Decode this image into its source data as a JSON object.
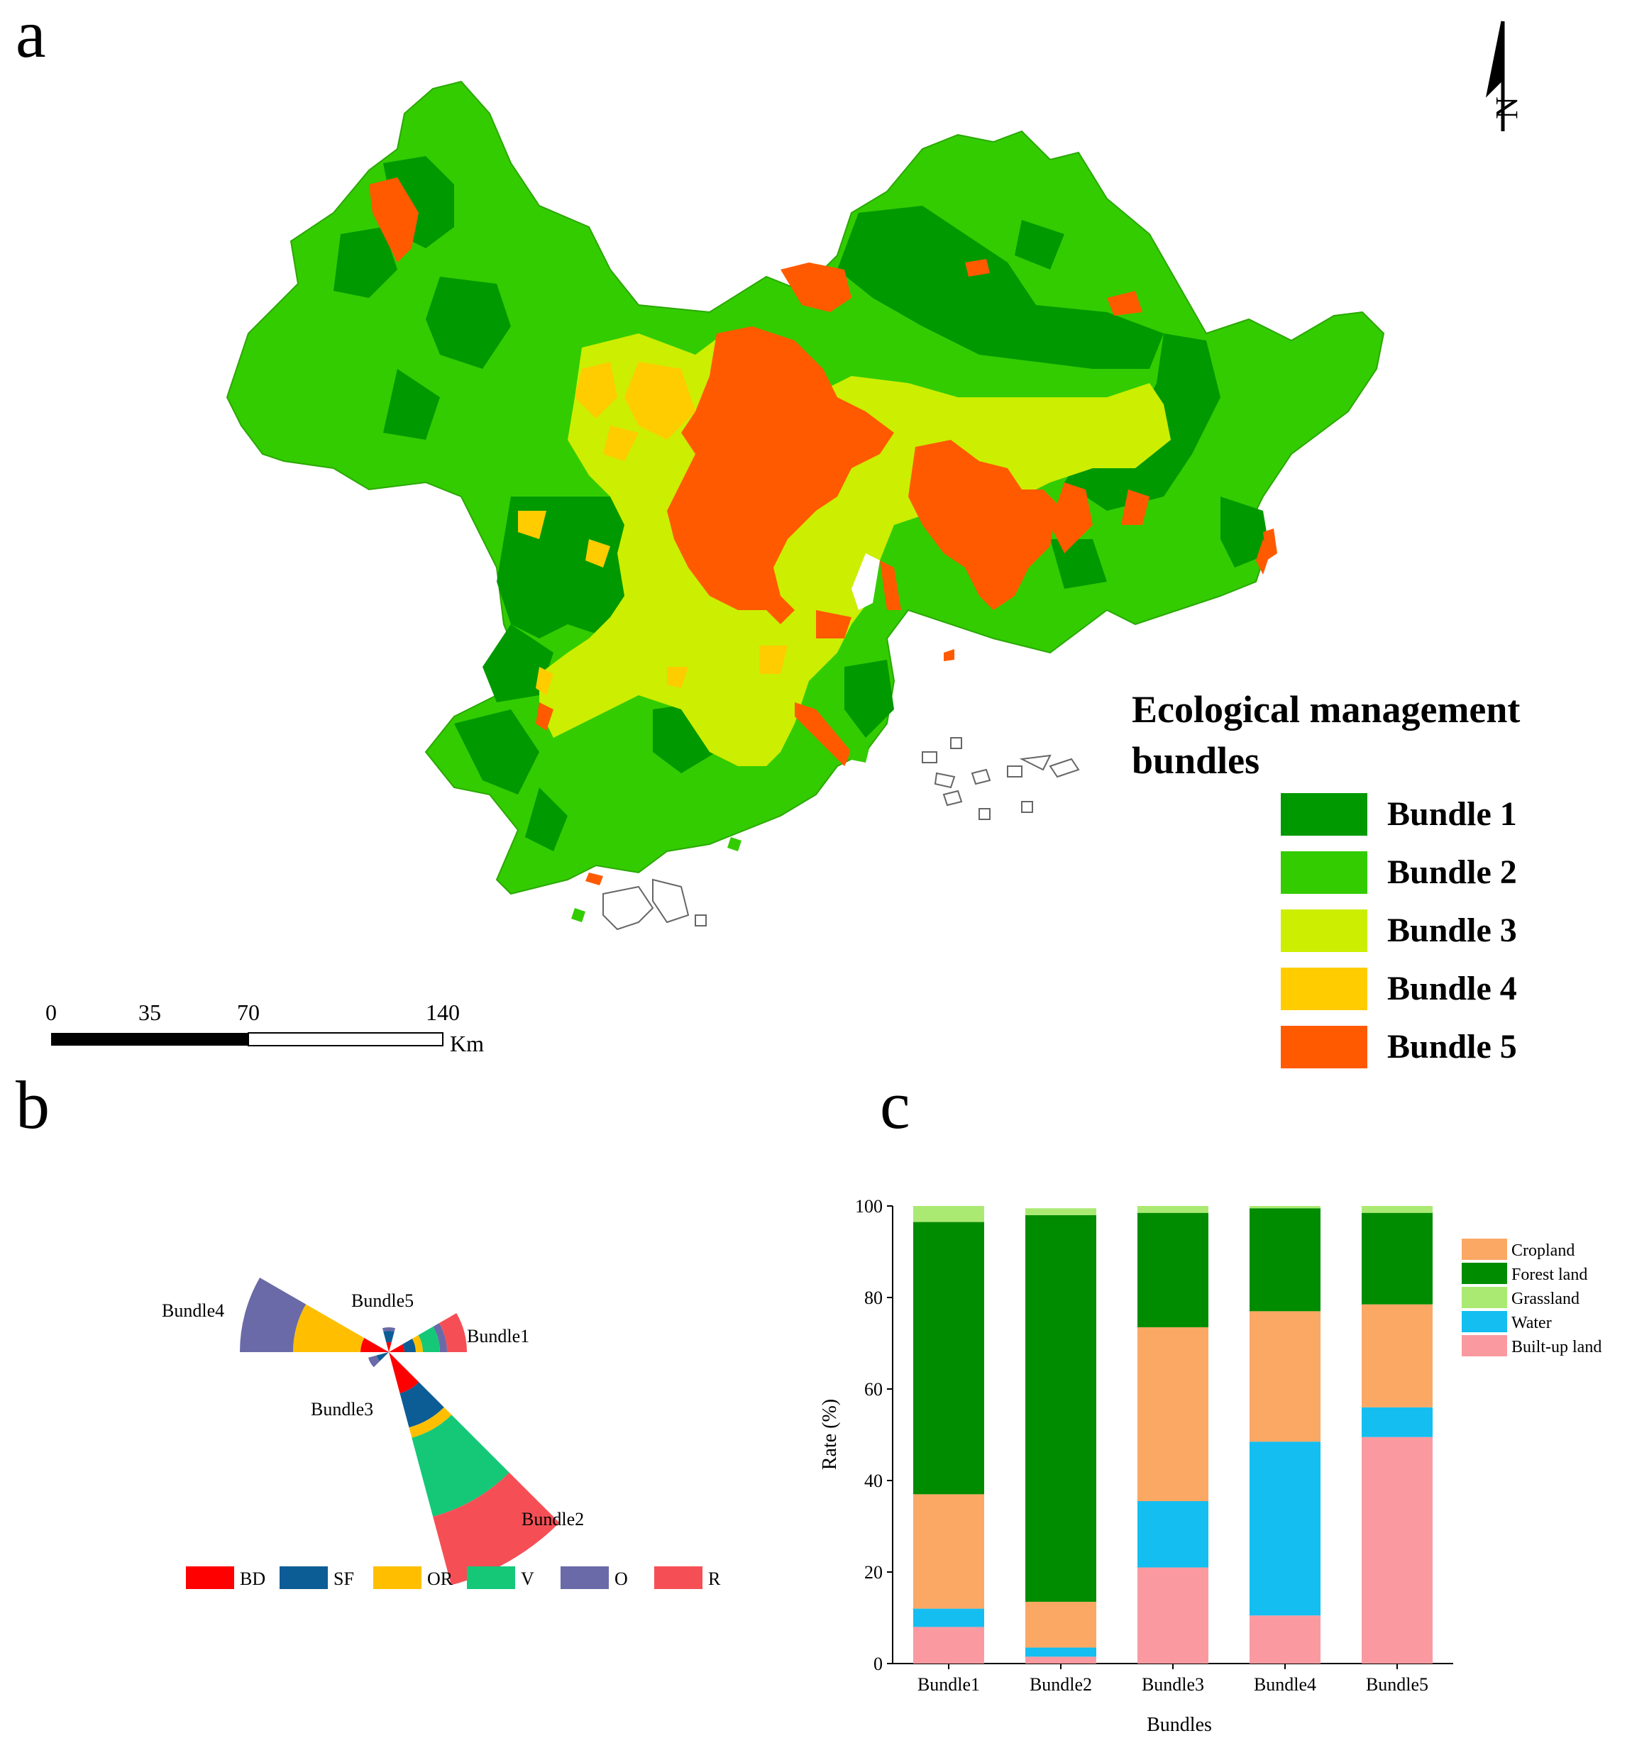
{
  "panels": {
    "a": {
      "label": "a"
    },
    "b": {
      "label": "b"
    },
    "c": {
      "label": "c"
    }
  },
  "map": {
    "legend_title_line1": "Ecological management",
    "legend_title_line2": "bundles",
    "legend": [
      {
        "label": "Bundle 1",
        "color": "#009900"
      },
      {
        "label": "Bundle 2",
        "color": "#33cc00"
      },
      {
        "label": "Bundle 3",
        "color": "#ccee00"
      },
      {
        "label": "Bundle 4",
        "color": "#ffcc00"
      },
      {
        "label": "Bundle 5",
        "color": "#ff5a00"
      }
    ],
    "scale_bar": {
      "ticks": [
        "0",
        "35",
        "70",
        "140"
      ],
      "unit": "Km"
    },
    "north_arrow": "N"
  },
  "rose": {
    "labels": {
      "b1": "Bundle1",
      "b2": "Bundle2",
      "b3": "Bundle3",
      "b4": "Bundle4",
      "b5": "Bundle5"
    },
    "legend": [
      {
        "label": "BD",
        "color": "#ff0000"
      },
      {
        "label": "SF",
        "color": "#0c5c96"
      },
      {
        "label": "OR",
        "color": "#ffbf00"
      },
      {
        "label": "V",
        "color": "#14c878"
      },
      {
        "label": "O",
        "color": "#6a6aa8"
      },
      {
        "label": "R",
        "color": "#f54f55"
      }
    ]
  },
  "chart_data": {
    "type": "bar",
    "stacked": true,
    "xlabel": "Bundles",
    "ylabel": "Rate (%)",
    "ylim": [
      0,
      100
    ],
    "yticks": [
      "0",
      "20",
      "40",
      "60",
      "80",
      "100"
    ],
    "categories": [
      "Bundle1",
      "Bundle2",
      "Bundle3",
      "Bundle4",
      "Bundle5"
    ],
    "series": [
      {
        "name": "Forest land",
        "color": "#008c00",
        "values": [
          59.5,
          84.5,
          25,
          22.5,
          20
        ]
      },
      {
        "name": "Cropland",
        "color": "#faa864",
        "values": [
          25,
          10,
          38,
          28.5,
          22.5
        ]
      },
      {
        "name": "Built-up land",
        "color": "#fa9aa0",
        "values": [
          8,
          1.5,
          21,
          10.5,
          49.5
        ]
      },
      {
        "name": "Water",
        "color": "#14bef0",
        "values": [
          4,
          2,
          14.5,
          38,
          6.5
        ]
      },
      {
        "name": "Grassland",
        "color": "#aaea73",
        "values": [
          3.5,
          1.5,
          1.5,
          0.5,
          1.5
        ]
      }
    ],
    "stack_order": [
      "Built-up land",
      "Water",
      "Cropland",
      "Forest land",
      "Grassland"
    ],
    "legend_order": [
      "Cropland",
      "Forest land",
      "Grassland",
      "Water",
      "Built-up land"
    ]
  }
}
